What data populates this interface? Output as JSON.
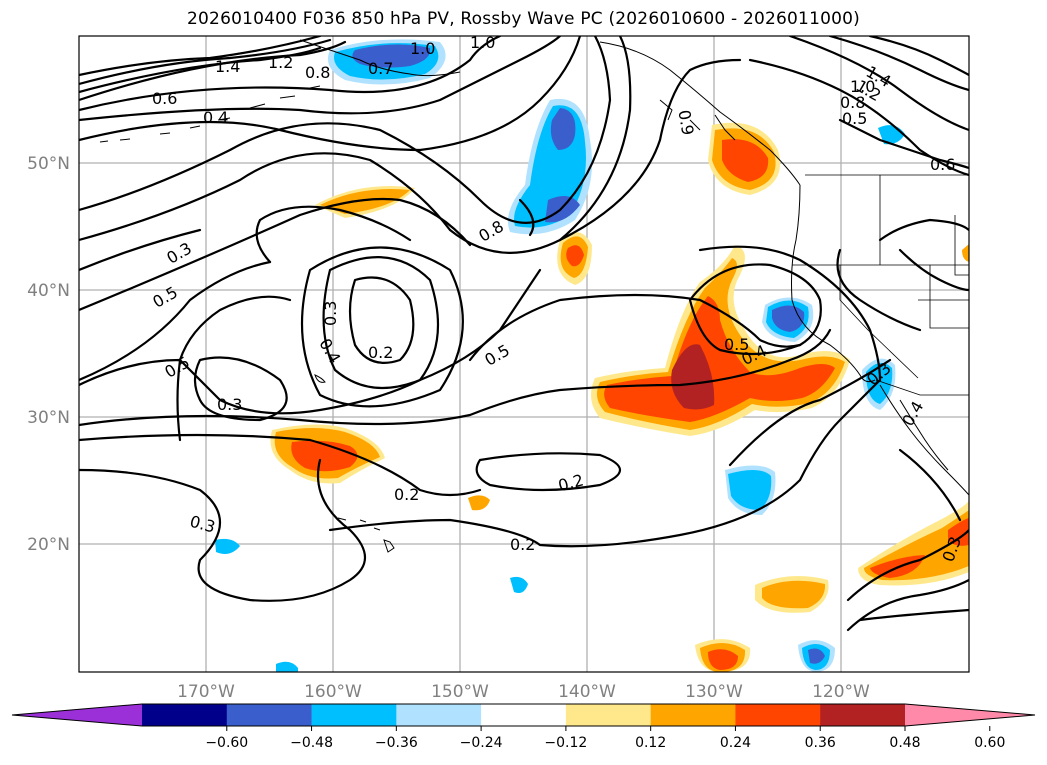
{
  "title": "2026010400 F036 850 hPa PV, Rossby Wave PC (2026010600 - 2026011000)",
  "map": {
    "lat_labels": [
      "50°N",
      "40°N",
      "30°N",
      "20°N"
    ],
    "lon_labels": [
      "170°W",
      "160°W",
      "150°W",
      "140°W",
      "130°W",
      "120°W"
    ]
  },
  "contour_labels": {
    "c1": "1.4",
    "c2": "1.2",
    "c3": "0.8",
    "c4": "0.6",
    "c5": "0.4",
    "c6": "1.0",
    "c7": "0.7",
    "c8": "0.6",
    "c9": "1.0",
    "c10": "1.4",
    "c11": "1.2",
    "c12": "1.0",
    "c13": "0.8",
    "c14": "0.5",
    "c15": "0.6",
    "c16": "0.3",
    "c17": "0.5",
    "c18": "0.8",
    "c19": "0.3",
    "c20": "0.4",
    "c21": "0.2",
    "c22": "0.5",
    "c23": "0.5",
    "c24": "0.3",
    "c25": "0.5",
    "c26": "0.4",
    "c27": "0.2",
    "c28": "0.2",
    "c29": "0.3",
    "c30": "0.2",
    "c31": "0.3",
    "c32": "0.3",
    "c33": "0.4",
    "c34": "0.9"
  },
  "colorbar": {
    "ticks": [
      "−0.60",
      "−0.48",
      "−0.36",
      "−0.24",
      "−0.12",
      "0.12",
      "0.24",
      "0.36",
      "0.48",
      "0.60"
    ],
    "colors": [
      "#9b30d9",
      "#00008b",
      "#3a5fcd",
      "#00bfff",
      "#b0e2ff",
      "#ffffff",
      "#ffe88c",
      "#ffa500",
      "#ff4500",
      "#b22222",
      "#ff89a9"
    ]
  }
}
